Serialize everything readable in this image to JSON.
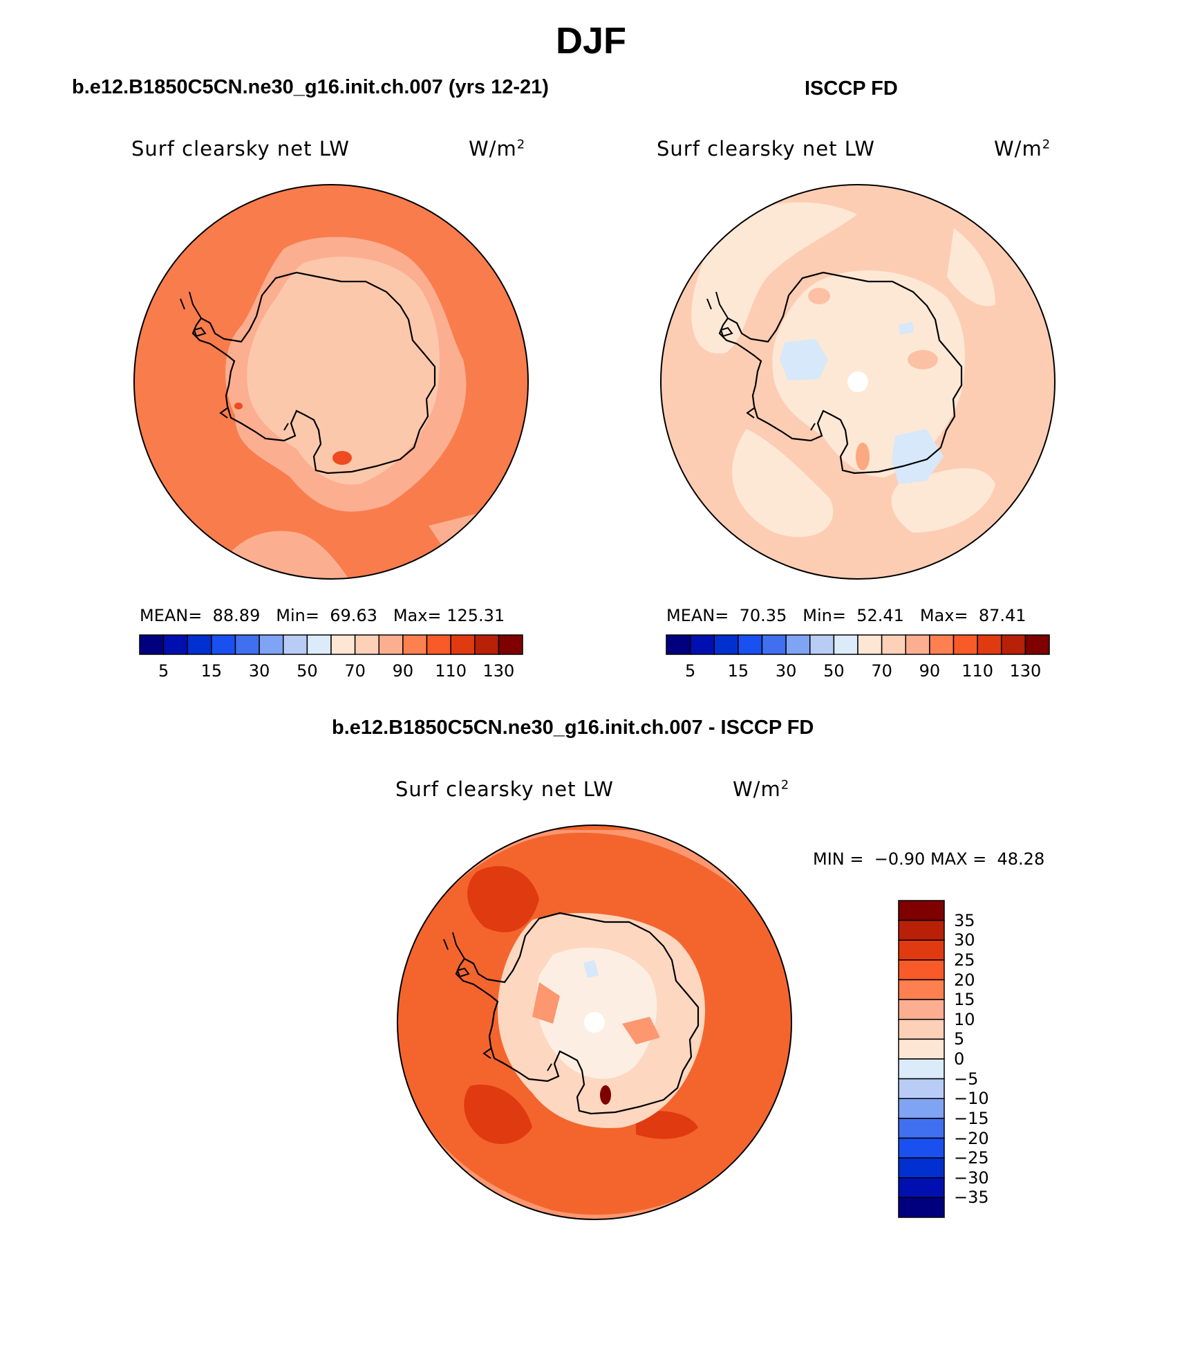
{
  "page": {
    "title": "DJF",
    "left_subtitle": "b.e12.B1850C5CN.ne30_g16.init.ch.007 (yrs 12-21)",
    "right_subtitle": "ISCCP FD",
    "bottom_subtitle": "b.e12.B1850C5CN.ne30_g16.init.ch.007 - ISCCP FD"
  },
  "panels": {
    "model": {
      "variable": "Surf clearsky net LW",
      "units": "W/m",
      "units_exp": "2",
      "mean_label": "MEAN=",
      "mean": "88.89",
      "min_label": "Min=",
      "min": "69.63",
      "max_label": "Max=",
      "max": "125.31"
    },
    "obs": {
      "variable": "Surf clearsky net LW",
      "units": "W/m",
      "units_exp": "2",
      "mean_label": "MEAN=",
      "mean": "70.35",
      "min_label": "Min=",
      "min": "52.41",
      "max_label": "Max=",
      "max": "87.41"
    },
    "diff": {
      "variable": "Surf clearsky net LW",
      "units": "W/m",
      "units_exp": "2",
      "min_label": "MIN =",
      "min": "−0.90",
      "max_label": "MAX =",
      "max": "48.28"
    }
  },
  "colorbar_abs": {
    "colors": [
      "#00007f",
      "#0010b0",
      "#0030d0",
      "#1a4ff0",
      "#4070f0",
      "#80a4f4",
      "#b8ccf6",
      "#dcebfa",
      "#fde6d4",
      "#fdd0b8",
      "#fcae90",
      "#fc8050",
      "#f85a28",
      "#e03a10",
      "#b82008",
      "#7f0000"
    ],
    "labels": [
      "5",
      "15",
      "30",
      "50",
      "70",
      "90",
      "110",
      "130"
    ]
  },
  "colorbar_diff": {
    "colors": [
      "#00007f",
      "#0010b0",
      "#0030d0",
      "#1a4ff0",
      "#4070f0",
      "#80a4f4",
      "#b8ccf6",
      "#dcebfa",
      "#fde6d4",
      "#fdd0b8",
      "#fcae90",
      "#fc8050",
      "#f85a28",
      "#e03a10",
      "#b82008",
      "#7f0000"
    ],
    "labels": [
      "35",
      "30",
      "25",
      "20",
      "15",
      "10",
      "5",
      "0",
      "−5",
      "−10",
      "−15",
      "−20",
      "−25",
      "−30",
      "−35"
    ]
  },
  "map_colors": {
    "model_ocean": "#f97c4c",
    "model_coast": "#fcae90",
    "model_land": "#fcc8ac",
    "model_hot": "#f04a20",
    "obs_ocean": "#fdcdb3",
    "obs_light": "#fde8d6",
    "obs_blue": "#d6e8fa",
    "diff_base": "#f4652e",
    "diff_dark": "#e03a10",
    "diff_mid": "#fc9770",
    "diff_light": "#fdd7c0",
    "diff_pale": "#fdeee3",
    "diff_blue": "#d6e8fa"
  }
}
